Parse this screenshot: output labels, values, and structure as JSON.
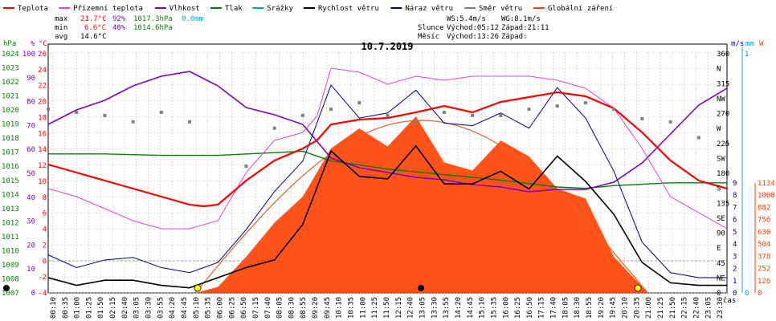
{
  "legend": [
    {
      "label": "Teplota",
      "color": "#ff0000"
    },
    {
      "label": "Přízemní teplota",
      "color": "#e040e0"
    },
    {
      "label": "Vlhkost",
      "color": "#8000c0"
    },
    {
      "label": "Tlak",
      "color": "#008000"
    },
    {
      "label": "Srážky",
      "color": "#00a0e0"
    },
    {
      "label": "Rychlost větru",
      "color": "#000000"
    },
    {
      "label": "Náraz větru",
      "color": "#000080"
    },
    {
      "label": "Směr větru",
      "color": "#808080"
    },
    {
      "label": "Globální záření",
      "color": "#ff4000"
    }
  ],
  "stats": {
    "max": {
      "label": "max",
      "temp": "21.7°C",
      "hum": "92%",
      "press": "1017.3hPa",
      "rain": "0.0mm"
    },
    "min": {
      "label": "min",
      "temp": "6.6°C",
      "hum": "40%",
      "press": "1014.6hPa"
    },
    "avg": {
      "label": "avg",
      "temp": "14.6°C"
    }
  },
  "info": {
    "ws": "WS:5.4m/s",
    "wg": "WG:8.1m/s",
    "sun_label": "Slunce",
    "sunrise": "Východ:05:12",
    "sunset": "Západ:21:11",
    "moon_label": "Měsíc",
    "moonrise": "Východ:13:26",
    "moonset": "Západ:"
  },
  "axes_left": {
    "hpa": {
      "unit": "hPa",
      "color": "#008000",
      "ticks": [
        "1024",
        "1023",
        "1022",
        "1021",
        "1020",
        "1019",
        "1018",
        "1017",
        "1016",
        "1015",
        "1014",
        "1013",
        "1012",
        "1011",
        "1010",
        "1009",
        "1008",
        "1007"
      ]
    },
    "pct": {
      "unit": "%",
      "color": "#8000c0",
      "ticks": [
        "100",
        "90",
        "80",
        "70",
        "60",
        "50",
        "40",
        "30",
        "20",
        "10",
        "0"
      ]
    },
    "c": {
      "unit": "°C",
      "color": "#ff0000",
      "ticks": [
        "26",
        "24",
        "22",
        "20",
        "18",
        "16",
        "14",
        "12",
        "10",
        "8",
        "6",
        "4",
        "2",
        "0",
        "-2",
        "-4"
      ]
    }
  },
  "axes_right": {
    "dir": {
      "ticks": [
        "360",
        "N",
        "315",
        "NW",
        "270",
        "W",
        "225",
        "SW",
        "180",
        "S",
        "135",
        "SE",
        "90",
        "E",
        "45",
        "NE",
        "0"
      ]
    },
    "ms": {
      "unit": "m/s",
      "color": "#000080",
      "ticks": [
        "9",
        "8",
        "7",
        "6",
        "5",
        "4",
        "3",
        "2",
        "1",
        "0"
      ]
    },
    "mm": {
      "unit": "mm",
      "color": "#00a0e0",
      "ticks": [
        "1",
        "0"
      ]
    },
    "w": {
      "unit": "W",
      "color": "#ff4000",
      "ticks": [
        "1134",
        "1008",
        "882",
        "756",
        "630",
        "504",
        "378",
        "252",
        "126",
        "0"
      ]
    }
  },
  "time_axis_label": "čas",
  "chart_data": {
    "type": "line",
    "title": "10.7.2019",
    "x_ticks": [
      "00:10",
      "00:35",
      "01:00",
      "01:25",
      "01:50",
      "02:15",
      "02:40",
      "03:05",
      "03:30",
      "03:55",
      "04:20",
      "04:45",
      "05:10",
      "05:35",
      "06:00",
      "06:25",
      "06:50",
      "07:15",
      "07:40",
      "08:05",
      "08:30",
      "08:55",
      "09:20",
      "09:45",
      "10:10",
      "10:35",
      "11:00",
      "11:25",
      "11:50",
      "12:15",
      "12:40",
      "13:05",
      "13:30",
      "13:55",
      "14:20",
      "14:45",
      "15:10",
      "15:35",
      "16:00",
      "16:25",
      "16:50",
      "17:15",
      "17:40",
      "18:05",
      "18:30",
      "18:55",
      "19:20",
      "19:45",
      "20:10",
      "20:35",
      "21:00",
      "21:25",
      "21:50",
      "22:15",
      "22:40",
      "23:05",
      "23:30"
    ],
    "temp_ylim": [
      -4,
      26
    ],
    "series": [
      {
        "name": "Teplota",
        "unit": "°C",
        "color": "#ff0000",
        "x": [
          0,
          1,
          2,
          3,
          4,
          5,
          5.5,
          6,
          7,
          8,
          9,
          9.5,
          10,
          11,
          12,
          13,
          14,
          15,
          16,
          17,
          18,
          19,
          20,
          21,
          22,
          23,
          24
        ],
        "values": [
          12,
          11,
          10,
          9,
          8,
          7,
          6.8,
          7,
          10,
          12.5,
          14,
          15,
          17,
          17.6,
          17.8,
          18.5,
          19.3,
          18.5,
          19.8,
          20.4,
          21,
          20.5,
          19,
          16,
          12.5,
          10,
          9
        ]
      },
      {
        "name": "Přízemní teplota",
        "unit": "°C",
        "color": "#e040e0",
        "x": [
          0,
          1,
          2,
          3,
          4,
          5,
          6,
          7,
          8,
          9,
          9.5,
          10,
          11,
          12,
          13,
          14,
          15,
          16,
          17,
          18,
          19,
          20,
          21,
          22,
          23,
          24
        ],
        "values": [
          9,
          8,
          6.5,
          5,
          4,
          4,
          5,
          11,
          15,
          16,
          18,
          24,
          23.5,
          22,
          23,
          22.5,
          23,
          23,
          23,
          22.5,
          21.5,
          19,
          14,
          8,
          6,
          4
        ]
      },
      {
        "name": "Vlhkost",
        "unit": "%",
        "color": "#8000c0",
        "x": [
          0,
          1,
          2,
          3,
          4,
          5,
          6,
          7,
          8,
          9,
          10,
          11,
          12,
          13,
          14,
          15,
          16,
          17,
          18,
          19,
          20,
          21,
          22,
          23,
          24
        ],
        "values": [
          70,
          76,
          80,
          86,
          90,
          92,
          86,
          77,
          74,
          70,
          56,
          52,
          50,
          48,
          47,
          45,
          44,
          42,
          43,
          43,
          46,
          54,
          66,
          78,
          85
        ]
      },
      {
        "name": "Tlak",
        "unit": "hPa",
        "color": "#008000",
        "x": [
          0,
          2,
          4,
          6,
          8,
          9,
          10,
          12,
          14,
          16,
          18,
          19,
          20,
          22,
          24
        ],
        "values": [
          1017.1,
          1017.1,
          1017.0,
          1017.0,
          1017.2,
          1017.3,
          1016.6,
          1016.0,
          1015.6,
          1015.2,
          1014.7,
          1014.6,
          1014.8,
          1015.0,
          1015.0
        ]
      },
      {
        "name": "Rychlost větru",
        "unit": "m/s",
        "color": "#000000",
        "x": [
          0,
          1,
          2,
          3,
          4,
          5,
          6,
          7,
          8,
          9,
          10,
          11,
          12,
          13,
          14,
          15,
          16,
          17,
          18,
          19,
          20,
          21,
          22,
          23,
          24
        ],
        "values": [
          0.6,
          0.3,
          0.5,
          0.5,
          0.3,
          0.2,
          0.6,
          1.0,
          1.3,
          2.7,
          5.6,
          4.6,
          4.5,
          5.8,
          4.3,
          4.3,
          4.8,
          4.1,
          5.4,
          4.4,
          3.1,
          1.2,
          0.4,
          0.3,
          0.3
        ]
      },
      {
        "name": "Náraz větru",
        "unit": "m/s",
        "color": "#000080",
        "x": [
          0,
          1,
          2,
          3,
          4,
          5,
          6,
          7,
          8,
          9,
          10,
          11,
          12,
          13,
          14,
          15,
          16,
          17,
          18,
          19,
          20,
          21,
          22,
          23,
          24
        ],
        "values": [
          1.5,
          1.0,
          1.3,
          1.4,
          1.0,
          0.8,
          1.2,
          2.5,
          4.0,
          5.2,
          8.2,
          6.9,
          7.1,
          8.0,
          6.7,
          6.6,
          7.1,
          6.5,
          8.1,
          6.9,
          4.8,
          2.0,
          0.8,
          0.6,
          0.6
        ]
      },
      {
        "name": "Globální záření",
        "unit": "W",
        "color": "#ff4000",
        "x": [
          5.2,
          6,
          7,
          8,
          9,
          10,
          11,
          12,
          13,
          14,
          15,
          16,
          17,
          18,
          19,
          20,
          21.2
        ],
        "values": [
          0,
          30,
          180,
          350,
          480,
          720,
          820,
          730,
          880,
          650,
          610,
          760,
          680,
          520,
          470,
          180,
          0
        ]
      },
      {
        "name": "Směr větru",
        "unit": "°",
        "color": "#808080",
        "x": [
          0,
          1,
          2,
          3,
          4,
          5,
          6,
          7,
          8,
          9,
          10,
          11,
          12,
          13,
          14,
          15,
          16,
          17,
          18,
          19,
          20,
          21,
          22,
          23,
          24
        ],
        "values": [
          290,
          285,
          280,
          270,
          285,
          270,
          null,
          200,
          260,
          280,
          290,
          300,
          280,
          270,
          285,
          280,
          280,
          290,
          295,
          300,
          290,
          275,
          270,
          245,
          235
        ]
      }
    ]
  }
}
